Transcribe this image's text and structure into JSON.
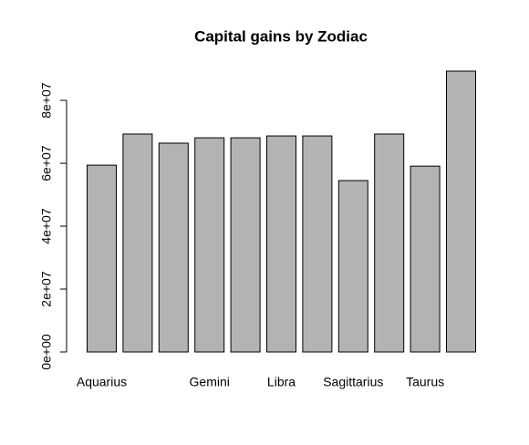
{
  "chart_data": {
    "type": "bar",
    "title": "Capital gains by Zodiac",
    "categories": [
      "Aquarius",
      null,
      null,
      "Gemini",
      null,
      "Libra",
      null,
      "Sagittarius",
      null,
      "Taurus",
      null
    ],
    "values": [
      59400000,
      69300000,
      66400000,
      68100000,
      68100000,
      68700000,
      68700000,
      54500000,
      69300000,
      59100000,
      89300000
    ],
    "color": "#b3b3b3",
    "ylim": [
      0,
      89300000
    ],
    "yticks": [
      {
        "value": 0,
        "label": "0e+00"
      },
      {
        "value": 20000000,
        "label": "2e+07"
      },
      {
        "value": 40000000,
        "label": "4e+07"
      },
      {
        "value": 60000000,
        "label": "6e+07"
      },
      {
        "value": 80000000,
        "label": "8e+07"
      }
    ]
  }
}
